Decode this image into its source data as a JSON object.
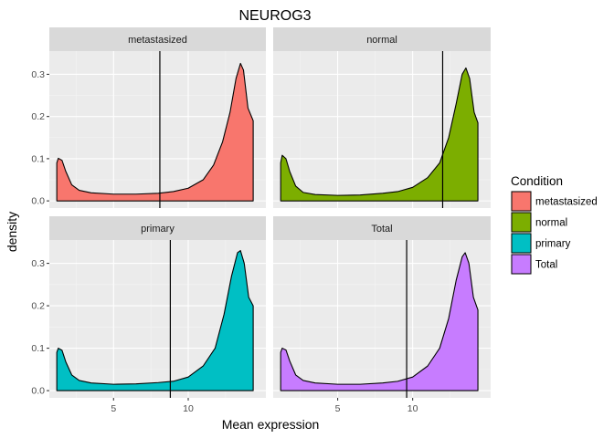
{
  "chart_data": {
    "type": "area",
    "title": "NEUROG3",
    "xlabel": "Mean expression",
    "ylabel": "density",
    "xlim": [
      0.7,
      15.2
    ],
    "ylim": [
      -0.017,
      0.355
    ],
    "x_ticks": [
      5,
      10
    ],
    "x_tick_labels": [
      "5",
      "10"
    ],
    "y_ticks": [
      0.0,
      0.1,
      0.2,
      0.3
    ],
    "y_tick_labels": [
      "0.0",
      "0.1",
      "0.2",
      "0.3"
    ],
    "grid": true,
    "legend": {
      "title": "Condition",
      "position": "right",
      "entries": [
        "metastasized",
        "normal",
        "primary",
        "Total"
      ]
    },
    "facets": [
      {
        "label": "metastasized",
        "fill": "#F8766D",
        "vline": 8.1,
        "points": [
          [
            1.2,
            0
          ],
          [
            1.2,
            0.09
          ],
          [
            1.3,
            0.101
          ],
          [
            1.55,
            0.096
          ],
          [
            1.8,
            0.07
          ],
          [
            2.2,
            0.038
          ],
          [
            2.7,
            0.025
          ],
          [
            3.5,
            0.019
          ],
          [
            5,
            0.016
          ],
          [
            6.5,
            0.016
          ],
          [
            8,
            0.018
          ],
          [
            9,
            0.022
          ],
          [
            10,
            0.03
          ],
          [
            11,
            0.05
          ],
          [
            11.7,
            0.085
          ],
          [
            12.3,
            0.14
          ],
          [
            12.8,
            0.21
          ],
          [
            13.2,
            0.29
          ],
          [
            13.5,
            0.326
          ],
          [
            13.7,
            0.31
          ],
          [
            14,
            0.22
          ],
          [
            14.35,
            0.19
          ],
          [
            14.35,
            0
          ]
        ]
      },
      {
        "label": "normal",
        "fill": "#7CAE00",
        "vline": 12.0,
        "points": [
          [
            1.2,
            0
          ],
          [
            1.2,
            0.09
          ],
          [
            1.3,
            0.108
          ],
          [
            1.55,
            0.1
          ],
          [
            1.8,
            0.07
          ],
          [
            2.2,
            0.035
          ],
          [
            2.7,
            0.02
          ],
          [
            3.5,
            0.015
          ],
          [
            5,
            0.013
          ],
          [
            6.5,
            0.014
          ],
          [
            8,
            0.018
          ],
          [
            9,
            0.022
          ],
          [
            10,
            0.032
          ],
          [
            11,
            0.055
          ],
          [
            11.8,
            0.09
          ],
          [
            12.4,
            0.15
          ],
          [
            12.9,
            0.23
          ],
          [
            13.3,
            0.3
          ],
          [
            13.55,
            0.315
          ],
          [
            13.8,
            0.29
          ],
          [
            14.1,
            0.21
          ],
          [
            14.35,
            0.185
          ],
          [
            14.35,
            0
          ]
        ]
      },
      {
        "label": "primary",
        "fill": "#00BFC4",
        "vline": 8.8,
        "points": [
          [
            1.2,
            0
          ],
          [
            1.2,
            0.09
          ],
          [
            1.3,
            0.1
          ],
          [
            1.55,
            0.095
          ],
          [
            1.8,
            0.068
          ],
          [
            2.2,
            0.037
          ],
          [
            2.7,
            0.024
          ],
          [
            3.5,
            0.018
          ],
          [
            5,
            0.015
          ],
          [
            6.5,
            0.016
          ],
          [
            8,
            0.019
          ],
          [
            9,
            0.022
          ],
          [
            10,
            0.032
          ],
          [
            11,
            0.058
          ],
          [
            11.8,
            0.1
          ],
          [
            12.4,
            0.18
          ],
          [
            12.9,
            0.27
          ],
          [
            13.3,
            0.325
          ],
          [
            13.5,
            0.33
          ],
          [
            13.75,
            0.3
          ],
          [
            14.05,
            0.22
          ],
          [
            14.35,
            0.2
          ],
          [
            14.35,
            0
          ]
        ]
      },
      {
        "label": "Total",
        "fill": "#C77CFF",
        "vline": 9.6,
        "points": [
          [
            1.2,
            0
          ],
          [
            1.2,
            0.09
          ],
          [
            1.3,
            0.1
          ],
          [
            1.55,
            0.096
          ],
          [
            1.8,
            0.07
          ],
          [
            2.2,
            0.037
          ],
          [
            2.7,
            0.024
          ],
          [
            3.5,
            0.018
          ],
          [
            5,
            0.015
          ],
          [
            6.5,
            0.015
          ],
          [
            8,
            0.018
          ],
          [
            9,
            0.022
          ],
          [
            10,
            0.032
          ],
          [
            11,
            0.058
          ],
          [
            11.8,
            0.1
          ],
          [
            12.4,
            0.17
          ],
          [
            12.9,
            0.26
          ],
          [
            13.3,
            0.315
          ],
          [
            13.5,
            0.325
          ],
          [
            13.75,
            0.3
          ],
          [
            14.05,
            0.22
          ],
          [
            14.35,
            0.19
          ],
          [
            14.35,
            0
          ]
        ]
      }
    ]
  }
}
